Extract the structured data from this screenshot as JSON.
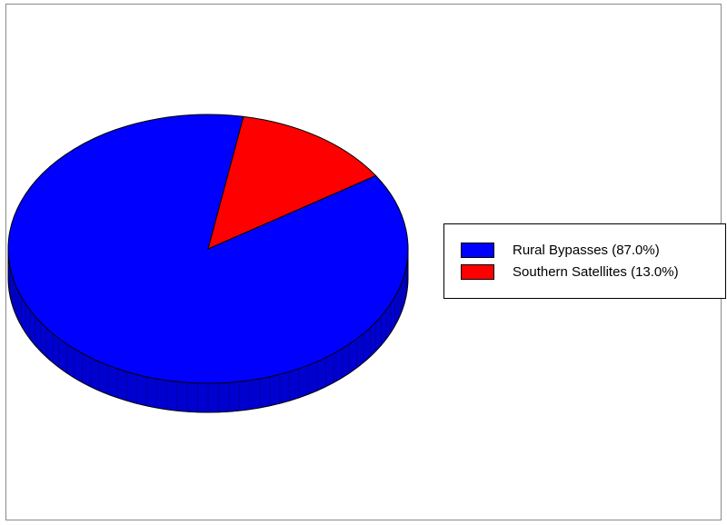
{
  "chart_data": {
    "type": "pie",
    "style": "3d",
    "slices": [
      {
        "label": "Rural Bypasses (87.0%)",
        "value": 87.0,
        "color": "#0000ff"
      },
      {
        "label": "Southern Satellites (13.0%)",
        "value": 13.0,
        "color": "#ff0000"
      }
    ],
    "legend_position": "right"
  }
}
